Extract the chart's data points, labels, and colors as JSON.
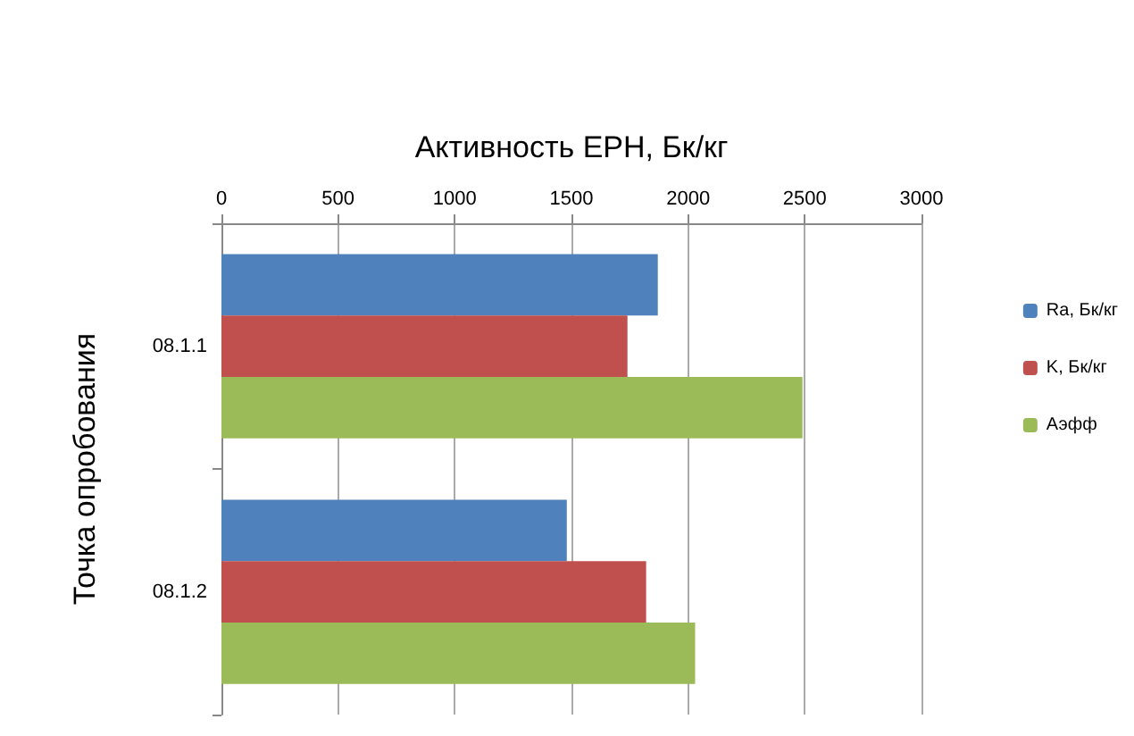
{
  "chart_data": {
    "type": "bar",
    "orientation": "horizontal",
    "xlabel": "Активность ЕРН, Бк/кг",
    "ylabel": "Точка опробования",
    "categories": [
      "08.1.1",
      "08.1.2"
    ],
    "series": [
      {
        "name": "Ra, Бк/кг",
        "color": "#4f81bd",
        "values": [
          1870,
          1480
        ]
      },
      {
        "name": "K, Бк/кг",
        "color": "#c0504d",
        "values": [
          1740,
          1820
        ]
      },
      {
        "name": "Аэфф",
        "color": "#9bbb59",
        "values": [
          2490,
          2030
        ]
      }
    ],
    "xlim": [
      0,
      3000
    ],
    "xticks": [
      0,
      500,
      1000,
      1500,
      2000,
      2500,
      3000
    ],
    "grid": "x",
    "legend": "right"
  }
}
